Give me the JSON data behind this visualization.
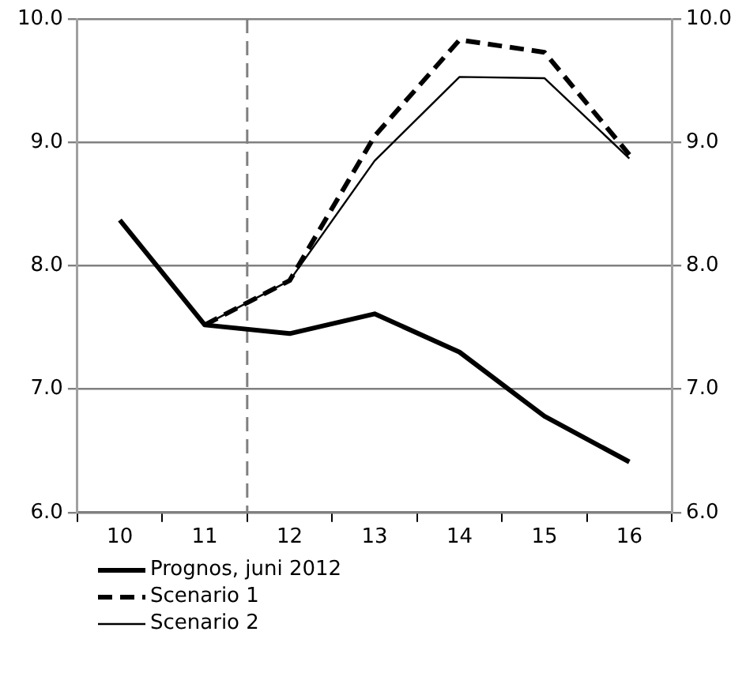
{
  "chart_data": {
    "type": "line",
    "x": [
      10,
      11,
      12,
      13,
      14,
      15,
      16
    ],
    "xlim": [
      9.5,
      16.5
    ],
    "xticks": [
      {
        "value": 9.5,
        "label": null
      },
      {
        "value": 10,
        "label": "10"
      },
      {
        "value": 10.5,
        "label": null
      },
      {
        "value": 11,
        "label": "11"
      },
      {
        "value": 11.5,
        "label": null
      },
      {
        "value": 12,
        "label": "12"
      },
      {
        "value": 12.5,
        "label": null
      },
      {
        "value": 13,
        "label": "13"
      },
      {
        "value": 13.5,
        "label": null
      },
      {
        "value": 14,
        "label": "14"
      },
      {
        "value": 14.5,
        "label": null
      },
      {
        "value": 15,
        "label": "15"
      },
      {
        "value": 15.5,
        "label": null
      },
      {
        "value": 16,
        "label": "16"
      },
      {
        "value": 16.5,
        "label": null
      }
    ],
    "ylim": [
      6,
      10
    ],
    "yticks": [
      {
        "value": 6,
        "label": "6.0"
      },
      {
        "value": 7,
        "label": "7.0"
      },
      {
        "value": 8,
        "label": "8.0"
      },
      {
        "value": 9,
        "label": "9.0"
      },
      {
        "value": 10,
        "label": "10.0"
      }
    ],
    "y2lim": [
      6,
      10
    ],
    "y2ticks": [
      {
        "value": 6,
        "label": "6.0"
      },
      {
        "value": 7,
        "label": "7.0"
      },
      {
        "value": 8,
        "label": "8.0"
      },
      {
        "value": 9,
        "label": "9.0"
      },
      {
        "value": 10,
        "label": "10.0"
      }
    ],
    "grid": "y",
    "legend": "bottom left",
    "marker": "none",
    "ref_lines": [
      {
        "axis": "x",
        "value": 11.5,
        "color": "#808080",
        "line_style": "dashed"
      }
    ],
    "series": [
      {
        "name": "Prognos, juni 2012",
        "color": "#000000",
        "line_style": "solid",
        "values": [
          8.37,
          7.52,
          7.45,
          7.61,
          7.3,
          6.78,
          6.41
        ]
      },
      {
        "name": "Scenario 1",
        "color": "#000000",
        "line_style": "dashed",
        "values": [
          null,
          7.52,
          7.88,
          9.05,
          9.83,
          9.73,
          8.9
        ]
      },
      {
        "name": "Scenario 2",
        "color": "#000000",
        "line_style": "solid",
        "values": [
          null,
          7.52,
          7.88,
          8.85,
          9.53,
          9.52,
          8.87
        ]
      }
    ]
  }
}
